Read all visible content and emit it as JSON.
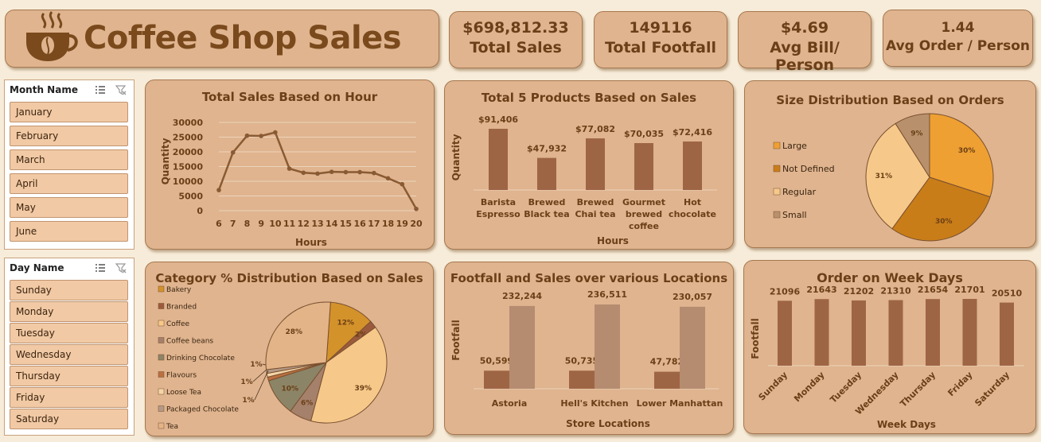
{
  "header": {
    "title": "Coffee Shop Sales"
  },
  "kpis": [
    {
      "value": "$698,812.33",
      "label": "Total Sales"
    },
    {
      "value": "149116",
      "label": "Total Footfall"
    },
    {
      "value": "$4.69",
      "label": "Avg Bill/ Person"
    },
    {
      "value": "1.44",
      "label": "Avg Order / Person"
    }
  ],
  "slicers": {
    "month": {
      "title": "Month Name",
      "items": [
        "January",
        "February",
        "March",
        "April",
        "May",
        "June"
      ]
    },
    "day": {
      "title": "Day Name",
      "items": [
        "Sunday",
        "Monday",
        "Tuesday",
        "Wednesday",
        "Thursday",
        "Friday",
        "Saturday"
      ]
    }
  },
  "colors": {
    "bar": "#9e6545",
    "bar_light": "#b58c70",
    "line": "#8a5a32",
    "card": "#dfb48f",
    "text": "#6b3f17"
  },
  "chart_data": [
    {
      "id": "hour",
      "type": "line",
      "title": "Total Sales Based on Hour",
      "xlabel": "Hours",
      "ylabel": "Quantity",
      "x": [
        "6",
        "7",
        "8",
        "9",
        "10",
        "11",
        "12",
        "13",
        "14",
        "15",
        "16",
        "17",
        "18",
        "19",
        "20"
      ],
      "values": [
        7000,
        19800,
        25500,
        25400,
        26600,
        14300,
        12900,
        12600,
        13200,
        13100,
        13100,
        12800,
        11000,
        9000,
        600
      ],
      "yticks": [
        0,
        5000,
        10000,
        15000,
        20000,
        25000,
        30000
      ],
      "ylim": [
        0,
        30000
      ],
      "grid": true
    },
    {
      "id": "products",
      "type": "bar",
      "title": "Total 5 Products Based on Sales",
      "xlabel": "Hours",
      "ylabel": "Quantity",
      "categories": [
        [
          "Barista",
          "Espresso"
        ],
        [
          "Brewed",
          "Black tea"
        ],
        [
          "Brewed",
          "Chai tea"
        ],
        [
          "Gourmet",
          "brewed",
          "coffee"
        ],
        [
          "Hot",
          "chocolate"
        ]
      ],
      "values": [
        91406,
        47932,
        77082,
        70035,
        72416
      ],
      "labels": [
        "$91,406",
        "$47,932",
        "$77,082",
        "$70,035",
        "$72,416"
      ]
    },
    {
      "id": "size",
      "type": "pie",
      "title": "Size Distribution Based on Orders",
      "legend": "left",
      "slices": [
        {
          "name": "Large",
          "value": 30,
          "label": "30%",
          "color": "#eea032"
        },
        {
          "name": "Not Defined",
          "value": 30,
          "label": "30%",
          "color": "#c97d18"
        },
        {
          "name": "Regular",
          "value": 31,
          "label": "31%",
          "color": "#f6c98a"
        },
        {
          "name": "Small",
          "value": 9,
          "label": "9%",
          "color": "#b8916c"
        }
      ]
    },
    {
      "id": "category",
      "type": "pie",
      "title": "Category  % Distribution Based on Sales",
      "legend": "left",
      "slices": [
        {
          "name": "Bakery",
          "value": 12,
          "label": "12%",
          "color": "#d4922a"
        },
        {
          "name": "Branded",
          "value": 2,
          "label": "2%",
          "color": "#9c5a3c"
        },
        {
          "name": "Coffee",
          "value": 39,
          "label": "39%",
          "color": "#f6c98a"
        },
        {
          "name": "Coffee beans",
          "value": 6,
          "label": "6%",
          "color": "#a5806a"
        },
        {
          "name": "Drinking Chocolate",
          "value": 10,
          "label": "10%",
          "color": "#8c8466"
        },
        {
          "name": "Flavours",
          "value": 1,
          "label": "1%",
          "color": "#bb7040"
        },
        {
          "name": "Loose Tea",
          "value": 1,
          "label": "1%",
          "color": "#f4d5a8"
        },
        {
          "name": "Packaged Chocolate",
          "value": 1,
          "label": "1%",
          "color": "#b49a86"
        },
        {
          "name": "Tea",
          "value": 28,
          "label": "28%",
          "color": "#e3b487"
        }
      ]
    },
    {
      "id": "locations",
      "type": "bar",
      "title": "Footfall and Sales over various Locations",
      "xlabel": "Store Locations",
      "ylabel": "Footfall",
      "categories": [
        "Astoria",
        "Hell's Kitchen",
        "Lower Manhattan"
      ],
      "series": [
        {
          "values": [
            50599,
            50735,
            47782
          ],
          "labels": [
            "50,599",
            "50,735",
            "47,782"
          ]
        },
        {
          "values": [
            232244,
            236511,
            230057
          ],
          "labels": [
            "232,244",
            "236,511",
            "230,057"
          ]
        }
      ]
    },
    {
      "id": "weekdays",
      "type": "bar",
      "title": "Order on Week Days",
      "xlabel": "Week Days",
      "ylabel": "Footfall",
      "categories": [
        "Sunday",
        "Monday",
        "Tuesday",
        "Wednesday",
        "Thursday",
        "Friday",
        "Saturday"
      ],
      "values": [
        21096,
        21643,
        21202,
        21310,
        21654,
        21701,
        20510
      ],
      "labels": [
        "21096",
        "21643",
        "21202",
        "21310",
        "21654",
        "21701",
        "20510"
      ]
    }
  ]
}
